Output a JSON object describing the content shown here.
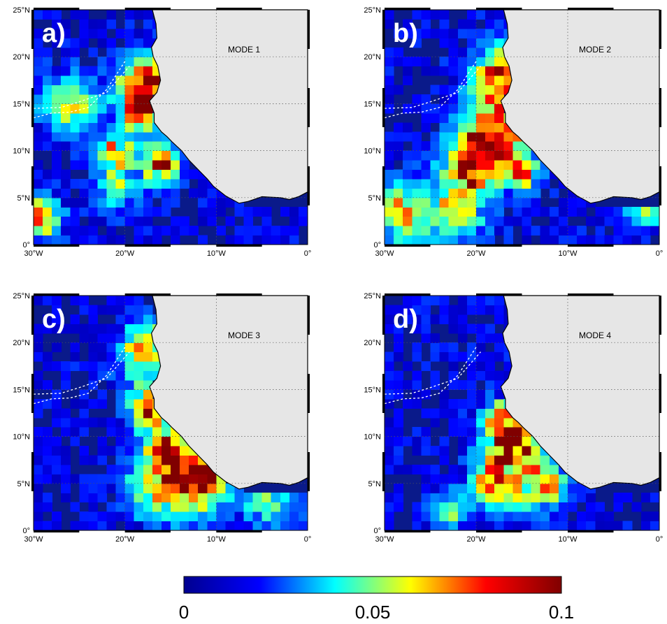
{
  "chart_data": [
    {
      "type": "heatmap",
      "panel_label": "a)",
      "mode_label": "MODE 1",
      "x_ticks": [
        "30°W",
        "20°W",
        "10°W",
        "0°"
      ],
      "y_ticks": [
        "0°",
        "5°N",
        "10°N",
        "15°N",
        "20°N",
        "25°N"
      ],
      "xlim": [
        -30,
        0
      ],
      "ylim": [
        0,
        25
      ],
      "cell_degrees": 1,
      "hotspots": [
        {
          "lon": -17.5,
          "lat": 17,
          "value": 0.1,
          "radius": 3
        },
        {
          "lon": -18,
          "lat": 14,
          "value": 0.09,
          "radius": 2
        },
        {
          "lon": -16,
          "lat": 8.5,
          "value": 0.1,
          "radius": 2
        },
        {
          "lon": -21,
          "lat": 10,
          "value": 0.07,
          "radius": 2
        },
        {
          "lon": -26,
          "lat": 15,
          "value": 0.06,
          "radius": 3
        },
        {
          "lon": -29,
          "lat": 3,
          "value": 0.08,
          "radius": 2
        },
        {
          "lon": -21,
          "lat": 6,
          "value": 0.06,
          "radius": 2
        }
      ],
      "dashed_lines": [
        [
          [
            -30,
            14.5
          ],
          [
            -27,
            14.6
          ],
          [
            -25,
            15.2
          ],
          [
            -22,
            16.2
          ],
          [
            -19.5,
            19
          ]
        ],
        [
          [
            -30,
            13.5
          ],
          [
            -28,
            14
          ],
          [
            -26,
            14.1
          ],
          [
            -24,
            14.6
          ],
          [
            -22,
            16.5
          ],
          [
            -20,
            19.5
          ]
        ]
      ]
    },
    {
      "type": "heatmap",
      "panel_label": "b)",
      "mode_label": "MODE 2",
      "x_ticks": [
        "30°W",
        "20°W",
        "10°W",
        "0°"
      ],
      "y_ticks": [
        "0°",
        "5°N",
        "10°N",
        "15°N",
        "20°N",
        "25°N"
      ],
      "xlim": [
        -30,
        0
      ],
      "ylim": [
        0,
        25
      ],
      "cell_degrees": 1,
      "hotspots": [
        {
          "lon": -17.5,
          "lat": 18,
          "value": 0.09,
          "radius": 3
        },
        {
          "lon": -18,
          "lat": 12,
          "value": 0.1,
          "radius": 3
        },
        {
          "lon": -20.5,
          "lat": 8.5,
          "value": 0.1,
          "radius": 3
        },
        {
          "lon": -15,
          "lat": 8,
          "value": 0.08,
          "radius": 2
        },
        {
          "lon": -28,
          "lat": 3.5,
          "value": 0.07,
          "radius": 3
        },
        {
          "lon": -22,
          "lat": 3.5,
          "value": 0.06,
          "radius": 3
        },
        {
          "lon": -2,
          "lat": 4,
          "value": 0.06,
          "radius": 2
        }
      ],
      "dashed_lines": [
        [
          [
            -30,
            14.5
          ],
          [
            -27,
            14.6
          ],
          [
            -25,
            15.2
          ],
          [
            -22,
            16.2
          ],
          [
            -19.5,
            19
          ]
        ],
        [
          [
            -30,
            13.5
          ],
          [
            -28,
            14
          ],
          [
            -26,
            14.1
          ],
          [
            -24,
            14.6
          ],
          [
            -22,
            16.5
          ],
          [
            -20,
            19.5
          ]
        ]
      ]
    },
    {
      "type": "heatmap",
      "panel_label": "c)",
      "mode_label": "MODE 3",
      "x_ticks": [
        "30°W",
        "20°W",
        "10°W",
        "0°"
      ],
      "y_ticks": [
        "0°",
        "5°N",
        "10°N",
        "15°N",
        "20°N",
        "25°N"
      ],
      "xlim": [
        -30,
        0
      ],
      "ylim": [
        0,
        25
      ],
      "cell_degrees": 1,
      "hotspots": [
        {
          "lon": -17.5,
          "lat": 19,
          "value": 0.07,
          "radius": 3
        },
        {
          "lon": -17.5,
          "lat": 13,
          "value": 0.1,
          "radius": 2
        },
        {
          "lon": -15,
          "lat": 8,
          "value": 0.1,
          "radius": 3
        },
        {
          "lon": -11,
          "lat": 6,
          "value": 0.1,
          "radius": 2
        },
        {
          "lon": -17,
          "lat": 4,
          "value": 0.05,
          "radius": 3
        },
        {
          "lon": -12,
          "lat": 4,
          "value": 0.05,
          "radius": 3
        },
        {
          "lon": -4,
          "lat": 3,
          "value": 0.04,
          "radius": 3
        }
      ],
      "dashed_lines": [
        [
          [
            -30,
            14.5
          ],
          [
            -27,
            14.6
          ],
          [
            -25,
            15.2
          ],
          [
            -22,
            16.2
          ],
          [
            -19.5,
            19
          ]
        ],
        [
          [
            -30,
            13.5
          ],
          [
            -28,
            14
          ],
          [
            -26,
            14.1
          ],
          [
            -24,
            14.6
          ],
          [
            -22,
            16.5
          ],
          [
            -20,
            19.5
          ]
        ]
      ]
    },
    {
      "type": "heatmap",
      "panel_label": "d)",
      "mode_label": "MODE 4",
      "x_ticks": [
        "30°W",
        "20°W",
        "10°W",
        "0°"
      ],
      "y_ticks": [
        "0°",
        "5°N",
        "10°N",
        "15°N",
        "20°N",
        "25°N"
      ],
      "xlim": [
        -30,
        0
      ],
      "ylim": [
        0,
        25
      ],
      "cell_degrees": 1,
      "hotspots": [
        {
          "lon": -16,
          "lat": 9,
          "value": 0.1,
          "radius": 3
        },
        {
          "lon": -17,
          "lat": 12,
          "value": 0.06,
          "radius": 2
        },
        {
          "lon": -18.5,
          "lat": 5,
          "value": 0.08,
          "radius": 2
        },
        {
          "lon": -12,
          "lat": 5,
          "value": 0.06,
          "radius": 2
        },
        {
          "lon": -15,
          "lat": 4,
          "value": 0.04,
          "radius": 3
        },
        {
          "lon": -23,
          "lat": 2,
          "value": 0.04,
          "radius": 2
        }
      ],
      "dashed_lines": [
        [
          [
            -30,
            14.5
          ],
          [
            -27,
            14.6
          ],
          [
            -25,
            15.2
          ],
          [
            -22,
            16.2
          ],
          [
            -19.5,
            19
          ]
        ],
        [
          [
            -30,
            13.5
          ],
          [
            -28,
            14
          ],
          [
            -26,
            14.1
          ],
          [
            -24,
            14.6
          ],
          [
            -22,
            16.5
          ],
          [
            -20,
            19.5
          ]
        ]
      ]
    }
  ],
  "colorbar": {
    "labels": [
      "0",
      "0.05",
      "0.1"
    ],
    "min": 0,
    "max": 0.1,
    "colormap": "jet",
    "colors": [
      "#00008f",
      "#0000ff",
      "#00ffff",
      "#ffff00",
      "#ff0000",
      "#800000"
    ]
  },
  "coastline": [
    [
      -17,
      25
    ],
    [
      -16.6,
      23.5
    ],
    [
      -16.5,
      22
    ],
    [
      -17.1,
      21
    ],
    [
      -16.9,
      20
    ],
    [
      -16.4,
      19
    ],
    [
      -16.1,
      17.5
    ],
    [
      -16.5,
      16.2
    ],
    [
      -17.3,
      15.3
    ],
    [
      -16.8,
      14
    ],
    [
      -16.8,
      13
    ],
    [
      -16,
      12
    ],
    [
      -15.4,
      11.5
    ],
    [
      -14.8,
      10.9
    ],
    [
      -13.8,
      10.0
    ],
    [
      -13,
      9
    ],
    [
      -12,
      8
    ],
    [
      -11,
      7
    ],
    [
      -10.3,
      6.2
    ],
    [
      -9,
      5.2
    ],
    [
      -7.5,
      4.4
    ],
    [
      -6.5,
      4.6
    ],
    [
      -5,
      5.1
    ],
    [
      -3,
      5.0
    ],
    [
      -2,
      4.8
    ],
    [
      -1,
      5.1
    ],
    [
      0,
      5.6
    ]
  ]
}
